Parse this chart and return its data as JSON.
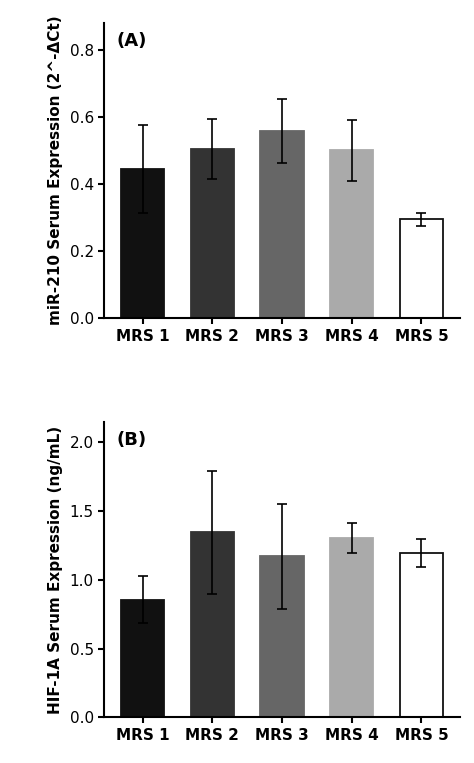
{
  "panel_A": {
    "label": "(A)",
    "categories": [
      "MRS 1",
      "MRS 2",
      "MRS 3",
      "MRS 4",
      "MRS 5"
    ],
    "values": [
      0.445,
      0.505,
      0.558,
      0.5,
      0.295
    ],
    "errors": [
      0.13,
      0.09,
      0.095,
      0.09,
      0.02
    ],
    "colors": [
      "#111111",
      "#333333",
      "#666666",
      "#aaaaaa",
      "#ffffff"
    ],
    "edgecolors": [
      "#111111",
      "#333333",
      "#666666",
      "#aaaaaa",
      "#111111"
    ],
    "ylabel": "miR-210 Serum Expression (2^-ΔCt)",
    "ylim": [
      0.0,
      0.88
    ],
    "yticks": [
      0.0,
      0.2,
      0.4,
      0.6,
      0.8
    ]
  },
  "panel_B": {
    "label": "(B)",
    "categories": [
      "MRS 1",
      "MRS 2",
      "MRS 3",
      "MRS 4",
      "MRS 5"
    ],
    "values": [
      0.855,
      1.345,
      1.17,
      1.305,
      1.195
    ],
    "errors": [
      0.17,
      0.45,
      0.385,
      0.11,
      0.1
    ],
    "colors": [
      "#111111",
      "#333333",
      "#666666",
      "#aaaaaa",
      "#ffffff"
    ],
    "edgecolors": [
      "#111111",
      "#333333",
      "#666666",
      "#aaaaaa",
      "#111111"
    ],
    "ylabel": "HIF-1A Serum Expression (ng/mL)",
    "ylim": [
      0.0,
      2.15
    ],
    "yticks": [
      0.0,
      0.5,
      1.0,
      1.5,
      2.0
    ]
  },
  "bar_width": 0.62,
  "background_color": "#ffffff",
  "font_family": "DejaVu Sans",
  "ylabel_fontsize": 11,
  "tick_fontsize": 11,
  "panel_label_fontsize": 13,
  "xtick_fontsize": 11
}
